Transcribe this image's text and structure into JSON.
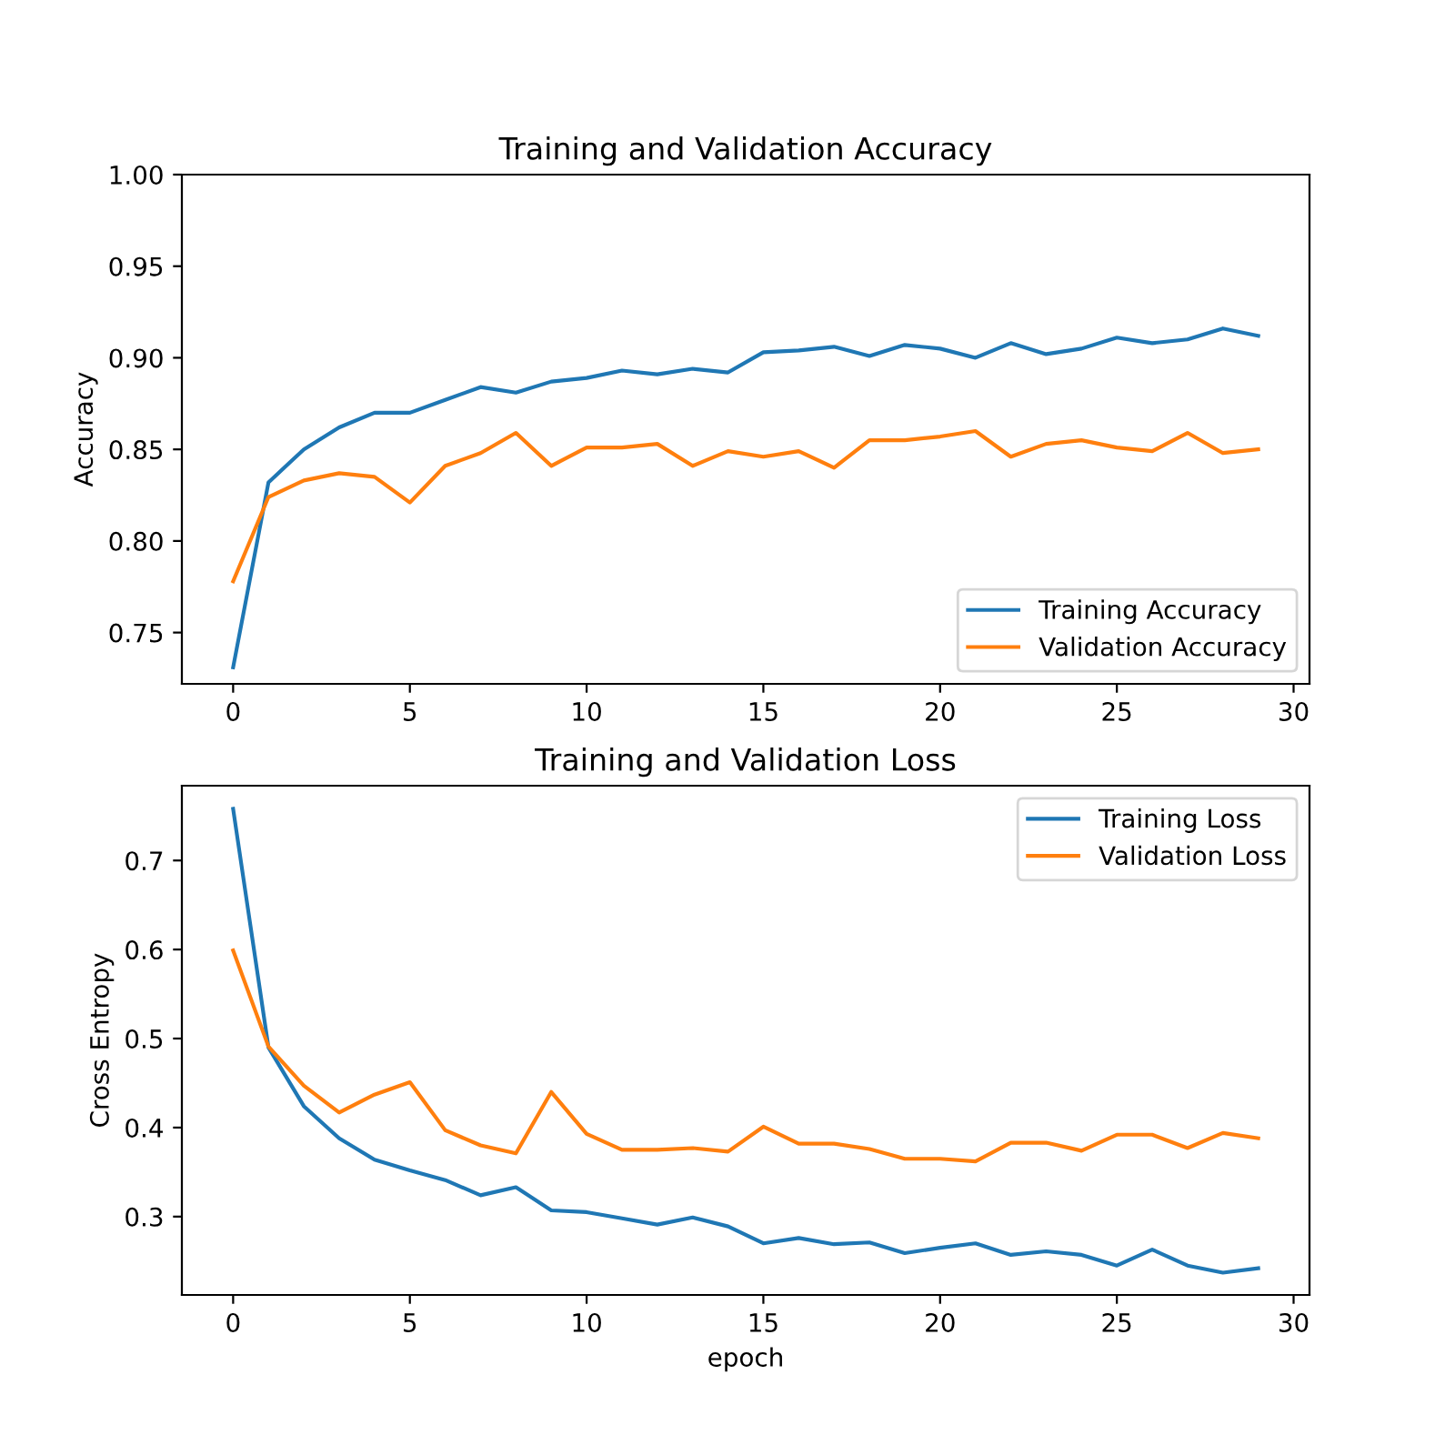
{
  "chart_data": [
    {
      "type": "line",
      "title": "Training and Validation Accuracy",
      "ylabel": "Accuracy",
      "x": [
        0,
        1,
        2,
        3,
        4,
        5,
        6,
        7,
        8,
        9,
        10,
        11,
        12,
        13,
        14,
        15,
        16,
        17,
        18,
        19,
        20,
        21,
        22,
        23,
        24,
        25,
        26,
        27,
        28,
        29
      ],
      "series": [
        {
          "name": "Training Accuracy",
          "color": "#1f77b4",
          "values": [
            0.731,
            0.832,
            0.85,
            0.862,
            0.87,
            0.87,
            0.877,
            0.884,
            0.881,
            0.887,
            0.889,
            0.893,
            0.891,
            0.894,
            0.892,
            0.903,
            0.904,
            0.906,
            0.901,
            0.907,
            0.905,
            0.9,
            0.908,
            0.902,
            0.905,
            0.911,
            0.908,
            0.91,
            0.916,
            0.912
          ]
        },
        {
          "name": "Validation Accuracy",
          "color": "#ff7f0e",
          "values": [
            0.778,
            0.824,
            0.833,
            0.837,
            0.835,
            0.821,
            0.841,
            0.848,
            0.859,
            0.841,
            0.851,
            0.851,
            0.853,
            0.841,
            0.849,
            0.846,
            0.849,
            0.84,
            0.855,
            0.855,
            0.857,
            0.86,
            0.846,
            0.853,
            0.855,
            0.851,
            0.849,
            0.859,
            0.848,
            0.85
          ]
        }
      ],
      "xlim": [
        -1.45,
        30.45
      ],
      "xticks": [
        0,
        5,
        10,
        15,
        20,
        25,
        30
      ],
      "ylim": [
        0.722,
        1.0
      ],
      "yticks": [
        {
          "value": 0.75,
          "label": "0.75"
        },
        {
          "value": 0.8,
          "label": "0.80"
        },
        {
          "value": 0.85,
          "label": "0.85"
        },
        {
          "value": 0.9,
          "label": "0.90"
        },
        {
          "value": 0.95,
          "label": "0.95"
        },
        {
          "value": 1.0,
          "label": "1.00"
        }
      ],
      "legend": "lower right",
      "grid": false,
      "marker": "none",
      "line_style": "solid"
    },
    {
      "type": "line",
      "title": "Training and Validation Loss",
      "ylabel": "Cross Entropy",
      "xlabel": "epoch",
      "x": [
        0,
        1,
        2,
        3,
        4,
        5,
        6,
        7,
        8,
        9,
        10,
        11,
        12,
        13,
        14,
        15,
        16,
        17,
        18,
        19,
        20,
        21,
        22,
        23,
        24,
        25,
        26,
        27,
        28,
        29
      ],
      "series": [
        {
          "name": "Training Loss",
          "color": "#1f77b4",
          "values": [
            0.758,
            0.49,
            0.424,
            0.388,
            0.364,
            0.352,
            0.341,
            0.324,
            0.333,
            0.307,
            0.305,
            0.298,
            0.291,
            0.299,
            0.289,
            0.27,
            0.276,
            0.269,
            0.271,
            0.259,
            0.265,
            0.27,
            0.257,
            0.261,
            0.257,
            0.245,
            0.263,
            0.245,
            0.237,
            0.242
          ]
        },
        {
          "name": "Validation Loss",
          "color": "#ff7f0e",
          "values": [
            0.599,
            0.491,
            0.447,
            0.417,
            0.437,
            0.451,
            0.397,
            0.38,
            0.371,
            0.44,
            0.393,
            0.375,
            0.375,
            0.377,
            0.373,
            0.401,
            0.382,
            0.382,
            0.376,
            0.365,
            0.365,
            0.362,
            0.383,
            0.383,
            0.374,
            0.392,
            0.392,
            0.377,
            0.394,
            0.388
          ]
        }
      ],
      "xlim": [
        -1.45,
        30.45
      ],
      "xticks": [
        0,
        5,
        10,
        15,
        20,
        25,
        30
      ],
      "ylim": [
        0.212,
        0.784
      ],
      "yticks": [
        0.3,
        0.4,
        0.5,
        0.6,
        0.7
      ],
      "legend": "upper right",
      "grid": false,
      "marker": "none",
      "line_style": "solid"
    }
  ]
}
